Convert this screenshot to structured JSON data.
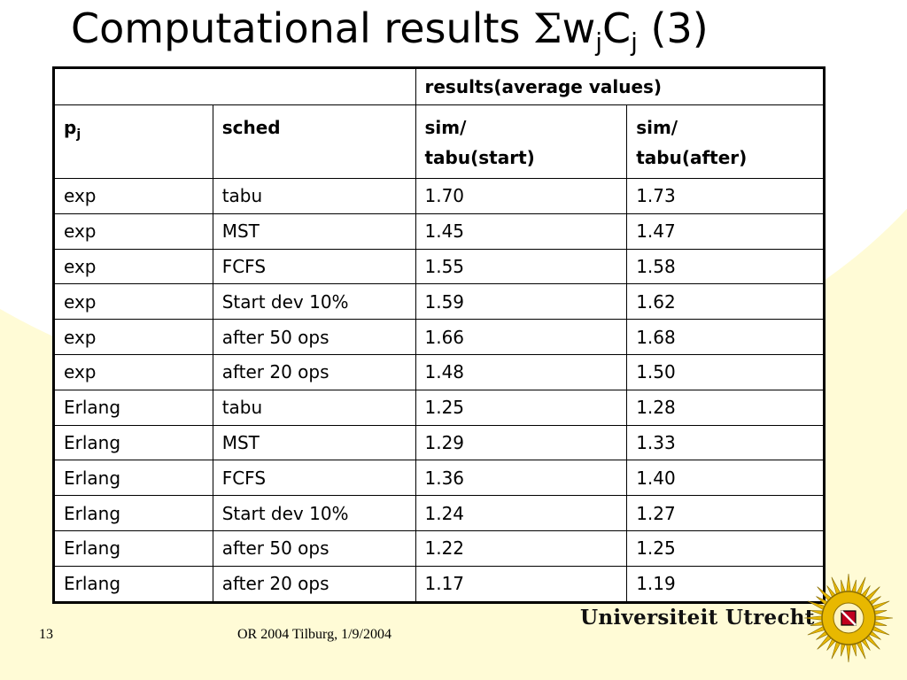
{
  "title": {
    "prefix": "Computational results ",
    "sigma": "Σ",
    "w": "w",
    "sub1": "j",
    "c": "C",
    "sub2": "j",
    "suffix": " (3)"
  },
  "table": {
    "group_header": "results(average values)",
    "col1_main": "p",
    "col1_sub": "j",
    "col2": "sched",
    "col3_line1": "sim/",
    "col3_line2": "tabu(start)",
    "col4_line1": "sim/",
    "col4_line2": "tabu(after)",
    "rows": [
      [
        "exp",
        "tabu",
        "1.70",
        "1.73"
      ],
      [
        "exp",
        "MST",
        "1.45",
        "1.47"
      ],
      [
        "exp",
        "FCFS",
        "1.55",
        "1.58"
      ],
      [
        "exp",
        "Start dev 10%",
        "1.59",
        "1.62"
      ],
      [
        "exp",
        "after 50 ops",
        "1.66",
        "1.68"
      ],
      [
        "exp",
        "after 20 ops",
        "1.48",
        "1.50"
      ],
      [
        "Erlang",
        "tabu",
        "1.25",
        "1.28"
      ],
      [
        "Erlang",
        "MST",
        "1.29",
        "1.33"
      ],
      [
        "Erlang",
        "FCFS",
        "1.36",
        "1.40"
      ],
      [
        "Erlang",
        "Start dev 10%",
        "1.24",
        "1.27"
      ],
      [
        "Erlang",
        "after 50 ops",
        "1.22",
        "1.25"
      ],
      [
        "Erlang",
        "after 20 ops",
        "1.17",
        "1.19"
      ]
    ]
  },
  "footer": {
    "slide_number": "13",
    "event": "OR 2004 Tilburg, 1/9/2004",
    "university": "Universiteit Utrecht"
  },
  "colors": {
    "background": "#fffbd6",
    "logo_gold": "#e8b800",
    "logo_red": "#c0001e"
  }
}
